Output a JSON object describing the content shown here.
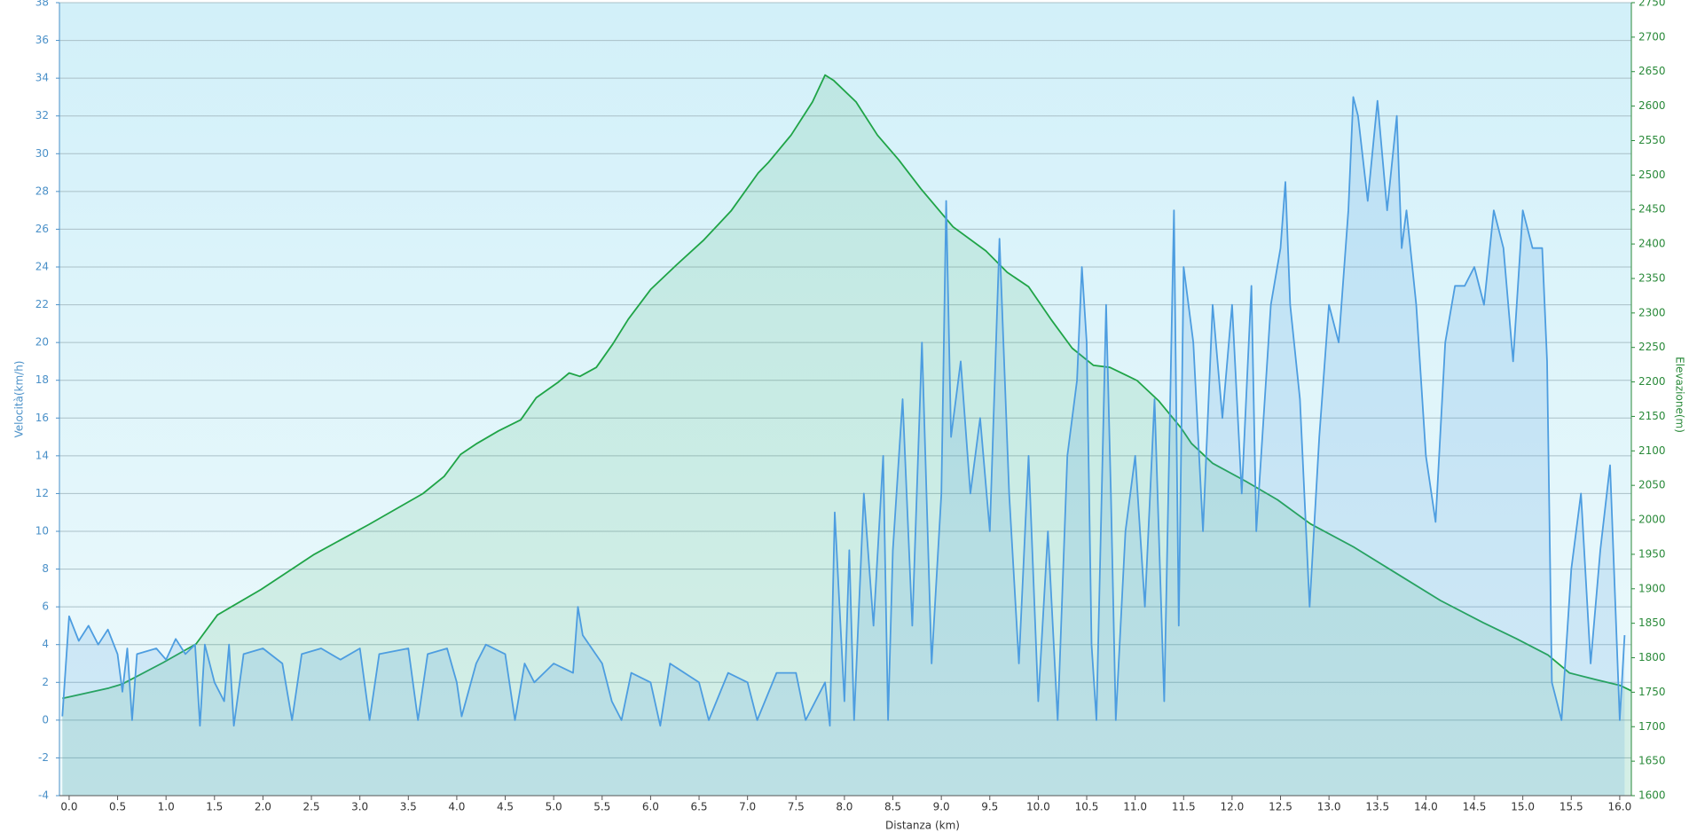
{
  "chart_data": {
    "type": "line",
    "xlabel": "Distanza  (km)",
    "ylabel": "Velocità(km/h)",
    "y2label": "Elevazione(m)",
    "xlim": [
      -0.1,
      16.12
    ],
    "ylim": [
      -4,
      38
    ],
    "y2lim": [
      1600,
      2750
    ],
    "grid": true,
    "xticks": [
      {
        "value": 0,
        "label": "0.0"
      },
      0.5,
      {
        "value": 1,
        "label": "1.0"
      },
      1.5,
      {
        "value": 2,
        "label": "2.0"
      },
      2.5,
      {
        "value": 3,
        "label": "3.0"
      },
      3.5,
      {
        "value": 4,
        "label": "4.0"
      },
      4.5,
      {
        "value": 5,
        "label": "5.0"
      },
      5.5,
      {
        "value": 6,
        "label": "6.0"
      },
      6.5,
      {
        "value": 7,
        "label": "7.0"
      },
      7.5,
      {
        "value": 8,
        "label": "8.0"
      },
      8.5,
      {
        "value": 9,
        "label": "9.0"
      },
      9.5,
      {
        "value": 10,
        "label": "10.0"
      },
      10.5,
      {
        "value": 11,
        "label": "11.0"
      },
      11.5,
      {
        "value": 12,
        "label": "12.0"
      },
      12.5,
      {
        "value": 13,
        "label": "13.0"
      },
      13.5,
      {
        "value": 14,
        "label": "14.0"
      },
      14.5,
      {
        "value": 15,
        "label": "15.0"
      },
      15.5,
      {
        "value": 16,
        "label": "16.0"
      }
    ],
    "yticks": [
      -4,
      -2,
      0,
      2,
      4,
      6,
      8,
      10,
      12,
      14,
      16,
      18,
      20,
      22,
      24,
      26,
      28,
      30,
      32,
      34,
      36,
      38
    ],
    "y2ticks": [
      1600,
      1650,
      1700,
      1750,
      1800,
      1850,
      1900,
      1950,
      2000,
      2050,
      2100,
      2150,
      2200,
      2250,
      2300,
      2350,
      2400,
      2450,
      2500,
      2550,
      2600,
      2650,
      2700,
      2750
    ],
    "series": [
      {
        "axis": "y2",
        "color": "#1fa447",
        "x": [
          -0.07,
          0.41,
          0.55,
          0.97,
          1.31,
          1.53,
          1.98,
          2.53,
          3.09,
          3.65,
          3.87,
          4.04,
          4.21,
          4.43,
          4.66,
          4.82,
          5.05,
          5.16,
          5.27,
          5.44,
          5.61,
          5.77,
          6.0,
          6.27,
          6.55,
          6.83,
          7.11,
          7.22,
          7.45,
          7.67,
          7.8,
          7.89,
          8.12,
          8.34,
          8.56,
          8.79,
          9.12,
          9.46,
          9.68,
          9.9,
          10.13,
          10.35,
          10.57,
          10.74,
          11.02,
          11.24,
          11.47,
          11.58,
          11.8,
          12.14,
          12.47,
          12.81,
          13.25,
          13.7,
          14.15,
          14.59,
          14.93,
          15.26,
          15.48,
          15.76,
          16.0,
          16.12
        ],
        "values": [
          1741,
          1756,
          1762,
          1793,
          1820,
          1862,
          1899,
          1950,
          1993,
          2038,
          2063,
          2095,
          2111,
          2129,
          2145,
          2177,
          2200,
          2213,
          2208,
          2221,
          2255,
          2291,
          2334,
          2370,
          2406,
          2448,
          2503,
          2519,
          2558,
          2606,
          2645,
          2637,
          2606,
          2558,
          2522,
          2480,
          2425,
          2390,
          2359,
          2338,
          2291,
          2249,
          2224,
          2221,
          2202,
          2173,
          2134,
          2111,
          2082,
          2056,
          2029,
          1994,
          1961,
          1922,
          1883,
          1851,
          1828,
          1804,
          1778,
          1768,
          1760,
          1752
        ]
      },
      {
        "axis": "y",
        "color": "#4d9de0",
        "x": [
          -0.07,
          0,
          0.1,
          0.2,
          0.3,
          0.4,
          0.5,
          0.55,
          0.6,
          0.65,
          0.7,
          0.9,
          1.0,
          1.1,
          1.2,
          1.3,
          1.35,
          1.4,
          1.5,
          1.6,
          1.65,
          1.7,
          1.8,
          2.0,
          2.2,
          2.3,
          2.4,
          2.6,
          2.8,
          3.0,
          3.1,
          3.2,
          3.5,
          3.6,
          3.7,
          3.9,
          4.0,
          4.05,
          4.2,
          4.3,
          4.5,
          4.6,
          4.7,
          4.8,
          5.0,
          5.2,
          5.25,
          5.3,
          5.5,
          5.6,
          5.7,
          5.8,
          6.0,
          6.1,
          6.2,
          6.5,
          6.6,
          6.8,
          7.0,
          7.1,
          7.3,
          7.5,
          7.6,
          7.8,
          7.85,
          7.9,
          7.95,
          8.0,
          8.05,
          8.1,
          8.2,
          8.3,
          8.4,
          8.45,
          8.5,
          8.6,
          8.7,
          8.8,
          8.9,
          9.0,
          9.05,
          9.1,
          9.2,
          9.3,
          9.4,
          9.5,
          9.6,
          9.7,
          9.8,
          9.9,
          10.0,
          10.1,
          10.2,
          10.3,
          10.4,
          10.45,
          10.5,
          10.55,
          10.6,
          10.7,
          10.75,
          10.8,
          10.9,
          11.0,
          11.1,
          11.2,
          11.3,
          11.4,
          11.45,
          11.5,
          11.6,
          11.7,
          11.8,
          11.9,
          12.0,
          12.1,
          12.2,
          12.25,
          12.4,
          12.5,
          12.55,
          12.6,
          12.7,
          12.8,
          12.9,
          13.0,
          13.1,
          13.2,
          13.25,
          13.3,
          13.4,
          13.5,
          13.6,
          13.7,
          13.75,
          13.8,
          13.9,
          14.0,
          14.1,
          14.2,
          14.3,
          14.4,
          14.5,
          14.6,
          14.7,
          14.8,
          14.9,
          15.0,
          15.1,
          15.2,
          15.25,
          15.3,
          15.4,
          15.5,
          15.6,
          15.7,
          15.8,
          15.9,
          16.0,
          16.05
        ],
        "values": [
          0.2,
          5.5,
          4.2,
          5,
          4,
          4.8,
          3.5,
          1.5,
          3.8,
          0,
          3.5,
          3.8,
          3.2,
          4.3,
          3.5,
          4,
          -0.3,
          4,
          2,
          1,
          4,
          -0.3,
          3.5,
          3.8,
          3,
          0,
          3.5,
          3.8,
          3.2,
          3.8,
          0,
          3.5,
          3.8,
          0,
          3.5,
          3.8,
          2,
          0.2,
          3,
          4,
          3.5,
          0,
          3,
          2,
          3,
          2.5,
          6,
          4.5,
          3,
          1,
          0,
          2.5,
          2,
          -0.3,
          3,
          2,
          0,
          2.5,
          2,
          0,
          2.5,
          2.5,
          0,
          2,
          -0.3,
          11,
          6,
          1,
          9,
          0,
          12,
          5,
          14,
          0,
          9,
          17,
          5,
          20,
          3,
          12,
          27.5,
          15,
          19,
          12,
          16,
          10,
          25.5,
          12,
          3,
          14,
          1,
          10,
          0,
          14,
          18,
          24,
          20,
          4,
          0,
          22,
          12,
          0,
          10,
          14,
          6,
          17,
          1,
          27,
          5,
          24,
          20,
          10,
          22,
          16,
          22,
          12,
          23,
          10,
          22,
          25,
          28.5,
          22,
          17,
          6,
          15,
          22,
          20,
          27,
          33,
          32,
          27.5,
          32.8,
          27,
          32,
          25,
          27,
          22,
          14,
          10.5,
          20,
          23,
          23,
          24,
          22,
          27,
          25,
          19,
          27,
          25,
          25,
          19,
          2,
          0,
          8,
          12,
          3,
          9,
          13.5,
          0,
          4.5
        ]
      }
    ]
  }
}
